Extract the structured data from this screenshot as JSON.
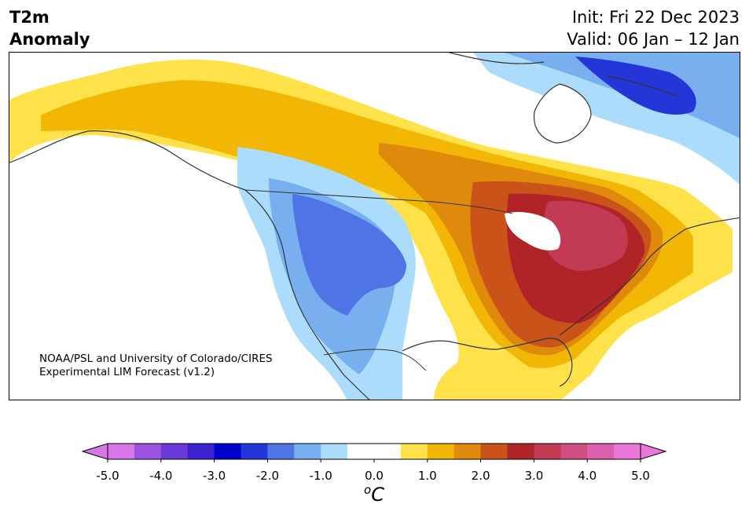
{
  "header": {
    "title_line1": "T2m",
    "title_line2": "Anomaly",
    "init": "Init: Fri 22 Dec 2023",
    "valid": "Valid: 06 Jan – 12 Jan"
  },
  "credit": {
    "line1": "NOAA/PSL and University of Colorado/CIRES",
    "line2": "Experimental LIM Forecast (v1.2)"
  },
  "colorbar": {
    "ticks": [
      "-5.0",
      "-4.0",
      "-3.0",
      "-2.0",
      "-1.0",
      "0.0",
      "1.0",
      "2.0",
      "3.0",
      "4.0",
      "5.0"
    ],
    "unit_sup": "o",
    "unit_letter": "C",
    "colors": [
      "#d877e8",
      "#9b52e0",
      "#6a3ad8",
      "#3a22d0",
      "#0000cc",
      "#2436d8",
      "#4f74e6",
      "#78b0ef",
      "#acdcfb",
      "#ffffff",
      "#ffffff",
      "#ffe14a",
      "#f2b705",
      "#e08a0c",
      "#c95318",
      "#b02326",
      "#c23a54",
      "#cf4f80",
      "#dd60ae",
      "#e877da"
    ],
    "extend_low_color": "#d877e8",
    "extend_high_color": "#e877da"
  },
  "map": {
    "region": "North America",
    "land_color": "#ffffff",
    "ocean_color": "#ffffff"
  }
}
